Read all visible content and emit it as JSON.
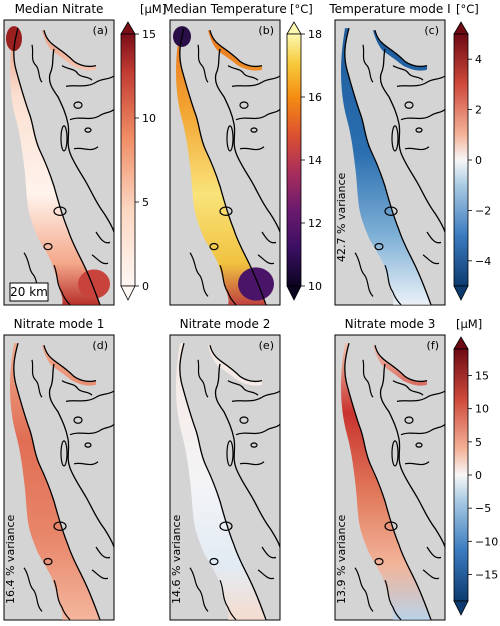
{
  "chart_data": [
    {
      "type": "heatmap",
      "title": "Median Nitrate",
      "panel_label": "(a)",
      "colorbar": {
        "unit": "[μM]",
        "ticks": [
          "0",
          "5",
          "10",
          "15"
        ],
        "range": [
          0,
          15
        ],
        "colormap": "white-to-dark-red",
        "extend": "both"
      },
      "scale_bar": "20 km"
    },
    {
      "type": "heatmap",
      "title": "Median Temperature",
      "panel_label": "(b)",
      "colorbar": {
        "unit": "[°C]",
        "ticks": [
          "10",
          "12",
          "14",
          "16",
          "18"
        ],
        "range": [
          10,
          18
        ],
        "colormap": "inferno",
        "extend": "both"
      }
    },
    {
      "type": "heatmap",
      "title": "Temperature mode I",
      "panel_label": "(c)",
      "variance": "42.7 % variance",
      "colorbar": {
        "unit": "[°C]",
        "ticks": [
          "−4",
          "−2",
          "0",
          "2",
          "4"
        ],
        "range": [
          -5,
          5
        ],
        "colormap": "blue-white-red",
        "extend": "both"
      }
    },
    {
      "type": "heatmap",
      "title": "Nitrate mode 1",
      "panel_label": "(d)",
      "variance": "16.4 % variance"
    },
    {
      "type": "heatmap",
      "title": "Nitrate mode 2",
      "panel_label": "(e)",
      "variance": "14.6 % variance"
    },
    {
      "type": "heatmap",
      "title": "Nitrate mode 3",
      "panel_label": "(f)",
      "variance": "13.9 % variance",
      "colorbar": {
        "unit": "[μM]",
        "ticks": [
          "−15",
          "−10",
          "−5",
          "0",
          "5",
          "10",
          "15"
        ],
        "range": [
          -19,
          19
        ],
        "colormap": "blue-white-red",
        "extend": "both"
      }
    }
  ],
  "colors": {
    "land": "#d4d4d4",
    "coast": "#000000",
    "nitrate_high": "#8b1a1a",
    "nitrate_low": "#fff7f3",
    "temp_low": "#1a0a2e",
    "temp_high": "#fcf8b0",
    "diverging_neg": "#1c5e9e",
    "diverging_pos": "#8b1a1a"
  }
}
